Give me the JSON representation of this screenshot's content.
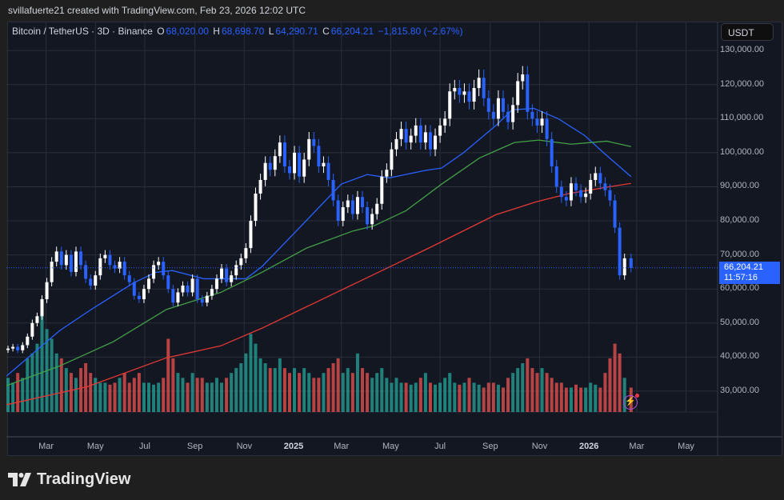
{
  "header": {
    "credit": "svillafuerte21 created with TradingView.com, Feb 23, 2026 12:02 UTC"
  },
  "legend": {
    "symbol": "Bitcoin / TetherUS · 3D · Binance",
    "o_label": "O",
    "open": "68,020.00",
    "h_label": "H",
    "high": "68,698.70",
    "l_label": "L",
    "low": "64,290.71",
    "c_label": "C",
    "close": "66,204.21",
    "change": "−1,815.80 (−2.67%)"
  },
  "currency_button": "USDT",
  "last_price": {
    "price": "66,204.21",
    "countdown": "11:57:16"
  },
  "brand": {
    "name": "TradingView"
  },
  "colors": {
    "background": "#131722",
    "up_candle": "#ffffff",
    "down_candle": "#2962ff",
    "up_volume": "#26a69a",
    "down_volume": "#ef5350",
    "ma_fast": "#2962ff",
    "ma_mid": "#43a047",
    "ma_slow": "#e53935",
    "accent": "#2962ff"
  },
  "icons": {
    "alert": "lightning-icon",
    "logo": "tradingview-logo-icon"
  },
  "chart_data": {
    "type": "candlestick",
    "title": "Bitcoin / TetherUS · 3D · Binance",
    "xlim": [
      "2024-01-12",
      "2026-06-09"
    ],
    "ylim": [
      18000,
      138500
    ],
    "grid": true,
    "y_ticks": [
      30000,
      40000,
      50000,
      60000,
      70000,
      80000,
      90000,
      100000,
      110000,
      120000,
      130000
    ],
    "y_tick_labels": [
      "30,000.00",
      "40,000.00",
      "50,000.00",
      "60,000.00",
      "70,000.00",
      "80,000.00",
      "90,000.00",
      "100,000.00",
      "110,000.00",
      "120,000.00",
      "130,000.00"
    ],
    "x_ticks": [
      {
        "label": "Mar",
        "date": "2024-03-01",
        "year": false
      },
      {
        "label": "May",
        "date": "2024-05-01",
        "year": false
      },
      {
        "label": "Jul",
        "date": "2024-07-01",
        "year": false
      },
      {
        "label": "Sep",
        "date": "2024-09-01",
        "year": false
      },
      {
        "label": "Nov",
        "date": "2024-11-01",
        "year": false
      },
      {
        "label": "2025",
        "date": "2025-01-01",
        "year": true
      },
      {
        "label": "Mar",
        "date": "2025-03-01",
        "year": false
      },
      {
        "label": "May",
        "date": "2025-05-01",
        "year": false
      },
      {
        "label": "Jul",
        "date": "2025-07-01",
        "year": false
      },
      {
        "label": "Sep",
        "date": "2025-09-01",
        "year": false
      },
      {
        "label": "Nov",
        "date": "2025-11-01",
        "year": false
      },
      {
        "label": "2026",
        "date": "2026-01-01",
        "year": true
      },
      {
        "label": "Mar",
        "date": "2026-03-01",
        "year": false
      },
      {
        "label": "May",
        "date": "2026-05-01",
        "year": false
      }
    ],
    "last_price": 66204.21,
    "dates": [
      "2024-01-14",
      "2024-01-20",
      "2024-01-26",
      "2024-02-01",
      "2024-02-07",
      "2024-02-13",
      "2024-02-19",
      "2024-02-25",
      "2024-03-02",
      "2024-03-08",
      "2024-03-14",
      "2024-03-20",
      "2024-03-26",
      "2024-04-01",
      "2024-04-07",
      "2024-04-13",
      "2024-04-19",
      "2024-04-25",
      "2024-05-01",
      "2024-05-07",
      "2024-05-13",
      "2024-05-19",
      "2024-05-25",
      "2024-05-31",
      "2024-06-06",
      "2024-06-12",
      "2024-06-18",
      "2024-06-24",
      "2024-06-30",
      "2024-07-06",
      "2024-07-12",
      "2024-07-18",
      "2024-07-24",
      "2024-07-30",
      "2024-08-05",
      "2024-08-11",
      "2024-08-17",
      "2024-08-23",
      "2024-08-29",
      "2024-09-04",
      "2024-09-10",
      "2024-09-16",
      "2024-09-22",
      "2024-09-28",
      "2024-10-04",
      "2024-10-10",
      "2024-10-16",
      "2024-10-22",
      "2024-10-28",
      "2024-11-03",
      "2024-11-09",
      "2024-11-15",
      "2024-11-21",
      "2024-11-27",
      "2024-12-03",
      "2024-12-09",
      "2024-12-15",
      "2024-12-21",
      "2024-12-27",
      "2025-01-02",
      "2025-01-08",
      "2025-01-14",
      "2025-01-20",
      "2025-01-26",
      "2025-02-01",
      "2025-02-07",
      "2025-02-13",
      "2025-02-19",
      "2025-02-25",
      "2025-03-03",
      "2025-03-09",
      "2025-03-15",
      "2025-03-21",
      "2025-03-27",
      "2025-04-02",
      "2025-04-08",
      "2025-04-14",
      "2025-04-20",
      "2025-04-26",
      "2025-05-02",
      "2025-05-08",
      "2025-05-14",
      "2025-05-20",
      "2025-05-26",
      "2025-06-01",
      "2025-06-07",
      "2025-06-13",
      "2025-06-19",
      "2025-06-25",
      "2025-07-01",
      "2025-07-07",
      "2025-07-13",
      "2025-07-19",
      "2025-07-25",
      "2025-07-31",
      "2025-08-06",
      "2025-08-12",
      "2025-08-18",
      "2025-08-24",
      "2025-08-30",
      "2025-09-05",
      "2025-09-11",
      "2025-09-17",
      "2025-09-23",
      "2025-09-29",
      "2025-10-05",
      "2025-10-11",
      "2025-10-17",
      "2025-10-23",
      "2025-10-29",
      "2025-11-04",
      "2025-11-10",
      "2025-11-16",
      "2025-11-22",
      "2025-11-28",
      "2025-12-04",
      "2025-12-10",
      "2025-12-16",
      "2025-12-22",
      "2025-12-28",
      "2026-01-03",
      "2026-01-09",
      "2026-01-15",
      "2026-01-21",
      "2026-01-27",
      "2026-02-02",
      "2026-02-08",
      "2026-02-14",
      "2026-02-22"
    ],
    "close": [
      42500,
      43000,
      42000,
      43500,
      46000,
      50000,
      52000,
      57000,
      62000,
      68000,
      71000,
      67000,
      70000,
      65000,
      71000,
      67000,
      63000,
      61000,
      64000,
      69000,
      70000,
      67000,
      66000,
      68000,
      64000,
      62000,
      58000,
      57000,
      60000,
      63000,
      67000,
      68000,
      64000,
      60000,
      56000,
      59000,
      61000,
      59000,
      63000,
      57000,
      56000,
      58000,
      60000,
      63000,
      66000,
      62000,
      64000,
      67000,
      69000,
      72000,
      80000,
      88000,
      92000,
      97000,
      95000,
      99000,
      103000,
      96000,
      94000,
      100000,
      93000,
      98000,
      104000,
      102000,
      96000,
      97000,
      92000,
      86000,
      80000,
      84000,
      86000,
      82000,
      87000,
      84000,
      79000,
      82000,
      85000,
      93000,
      95000,
      101000,
      104000,
      107000,
      103000,
      105000,
      108000,
      103000,
      106000,
      101000,
      105000,
      108000,
      110000,
      118000,
      119000,
      117000,
      118000,
      115000,
      119000,
      122000,
      116000,
      112000,
      110000,
      116000,
      112000,
      109000,
      114000,
      121000,
      123000,
      112000,
      110000,
      108000,
      110000,
      104000,
      96000,
      90000,
      87000,
      86000,
      91000,
      89000,
      87000,
      88000,
      92000,
      94000,
      91000,
      89000,
      86000,
      78000,
      64000,
      69000,
      66204
    ],
    "volume_relative": [
      35,
      30,
      40,
      35,
      55,
      60,
      70,
      100,
      85,
      75,
      60,
      55,
      45,
      40,
      35,
      45,
      50,
      40,
      35,
      30,
      30,
      28,
      30,
      35,
      40,
      30,
      35,
      40,
      30,
      30,
      28,
      30,
      35,
      75,
      55,
      40,
      35,
      30,
      40,
      35,
      35,
      30,
      30,
      35,
      30,
      35,
      40,
      45,
      50,
      60,
      80,
      70,
      55,
      50,
      45,
      45,
      55,
      45,
      40,
      45,
      40,
      45,
      40,
      35,
      35,
      40,
      45,
      50,
      55,
      40,
      45,
      40,
      60,
      45,
      40,
      35,
      40,
      45,
      35,
      30,
      35,
      30,
      30,
      28,
      30,
      35,
      40,
      30,
      28,
      30,
      35,
      40,
      30,
      28,
      30,
      35,
      30,
      28,
      25,
      30,
      30,
      28,
      25,
      35,
      40,
      45,
      50,
      55,
      45,
      40,
      45,
      40,
      35,
      30,
      30,
      25,
      25,
      28,
      25,
      25,
      30,
      28,
      25,
      40,
      55,
      70,
      60,
      35,
      25
    ],
    "moving_averages": [
      {
        "color": "#2962ff",
        "points": [
          [
            "2024-01-12",
            34400
          ],
          [
            "2024-03-18",
            47800
          ],
          [
            "2024-04-26",
            54000
          ],
          [
            "2024-06-18",
            61900
          ],
          [
            "2024-07-15",
            64900
          ],
          [
            "2024-08-04",
            65400
          ],
          [
            "2024-09-12",
            63000
          ],
          [
            "2024-11-03",
            63000
          ],
          [
            "2024-11-23",
            66600
          ],
          [
            "2024-12-15",
            72000
          ],
          [
            "2025-03-01",
            90800
          ],
          [
            "2025-04-02",
            93600
          ],
          [
            "2025-04-29",
            92600
          ],
          [
            "2025-06-13",
            94800
          ],
          [
            "2025-07-03",
            95500
          ],
          [
            "2025-07-30",
            100000
          ],
          [
            "2025-09-08",
            108000
          ],
          [
            "2025-09-28",
            112600
          ],
          [
            "2025-10-25",
            113000
          ],
          [
            "2025-11-24",
            110000
          ],
          [
            "2025-12-27",
            105000
          ],
          [
            "2026-01-19",
            100000
          ],
          [
            "2026-02-22",
            93000
          ]
        ]
      },
      {
        "color": "#43a047",
        "points": [
          [
            "2024-01-12",
            31600
          ],
          [
            "2024-03-18",
            37400
          ],
          [
            "2024-05-23",
            44500
          ],
          [
            "2024-07-28",
            54000
          ],
          [
            "2024-10-03",
            59000
          ],
          [
            "2024-11-23",
            64900
          ],
          [
            "2025-01-17",
            72000
          ],
          [
            "2025-03-15",
            77000
          ],
          [
            "2025-04-10",
            78500
          ],
          [
            "2025-05-20",
            83000
          ],
          [
            "2025-07-03",
            90800
          ],
          [
            "2025-08-19",
            98500
          ],
          [
            "2025-09-08",
            100600
          ],
          [
            "2025-10-01",
            103000
          ],
          [
            "2025-10-31",
            103700
          ],
          [
            "2025-12-10",
            102500
          ],
          [
            "2026-01-23",
            103400
          ],
          [
            "2026-02-22",
            101800
          ]
        ]
      },
      {
        "color": "#e53935",
        "points": [
          [
            "2024-01-12",
            26000
          ],
          [
            "2024-04-21",
            31300
          ],
          [
            "2024-07-28",
            39800
          ],
          [
            "2024-10-03",
            43300
          ],
          [
            "2024-11-23",
            48500
          ],
          [
            "2025-06-17",
            72000
          ],
          [
            "2025-09-08",
            81800
          ],
          [
            "2025-10-28",
            85600
          ],
          [
            "2025-12-07",
            88000
          ],
          [
            "2026-01-26",
            90000
          ],
          [
            "2026-02-22",
            91000
          ]
        ]
      }
    ]
  }
}
